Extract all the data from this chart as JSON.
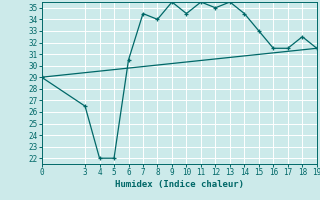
{
  "xlabel": "Humidex (Indice chaleur)",
  "bg_color": "#cceaea",
  "line_color": "#006868",
  "grid_color": "#ffffff",
  "xlim": [
    0,
    19
  ],
  "ylim": [
    21.5,
    35.5
  ],
  "xticks": [
    0,
    3,
    4,
    5,
    6,
    7,
    8,
    9,
    10,
    11,
    12,
    13,
    14,
    15,
    16,
    17,
    18,
    19
  ],
  "yticks": [
    22,
    23,
    24,
    25,
    26,
    27,
    28,
    29,
    30,
    31,
    32,
    33,
    34,
    35
  ],
  "curve1_x": [
    0,
    3,
    4,
    5,
    6,
    7,
    8,
    9,
    10,
    11,
    12,
    13,
    14,
    15,
    16,
    17,
    18,
    19
  ],
  "curve1_y": [
    29.0,
    26.5,
    22.0,
    22.0,
    30.5,
    34.5,
    34.0,
    35.5,
    34.5,
    35.5,
    35.0,
    35.5,
    34.5,
    33.0,
    31.5,
    31.5,
    32.5,
    31.5
  ],
  "curve2_x": [
    0,
    19
  ],
  "curve2_y": [
    29.0,
    31.5
  ],
  "tick_fontsize": 5.5,
  "xlabel_fontsize": 6.5
}
